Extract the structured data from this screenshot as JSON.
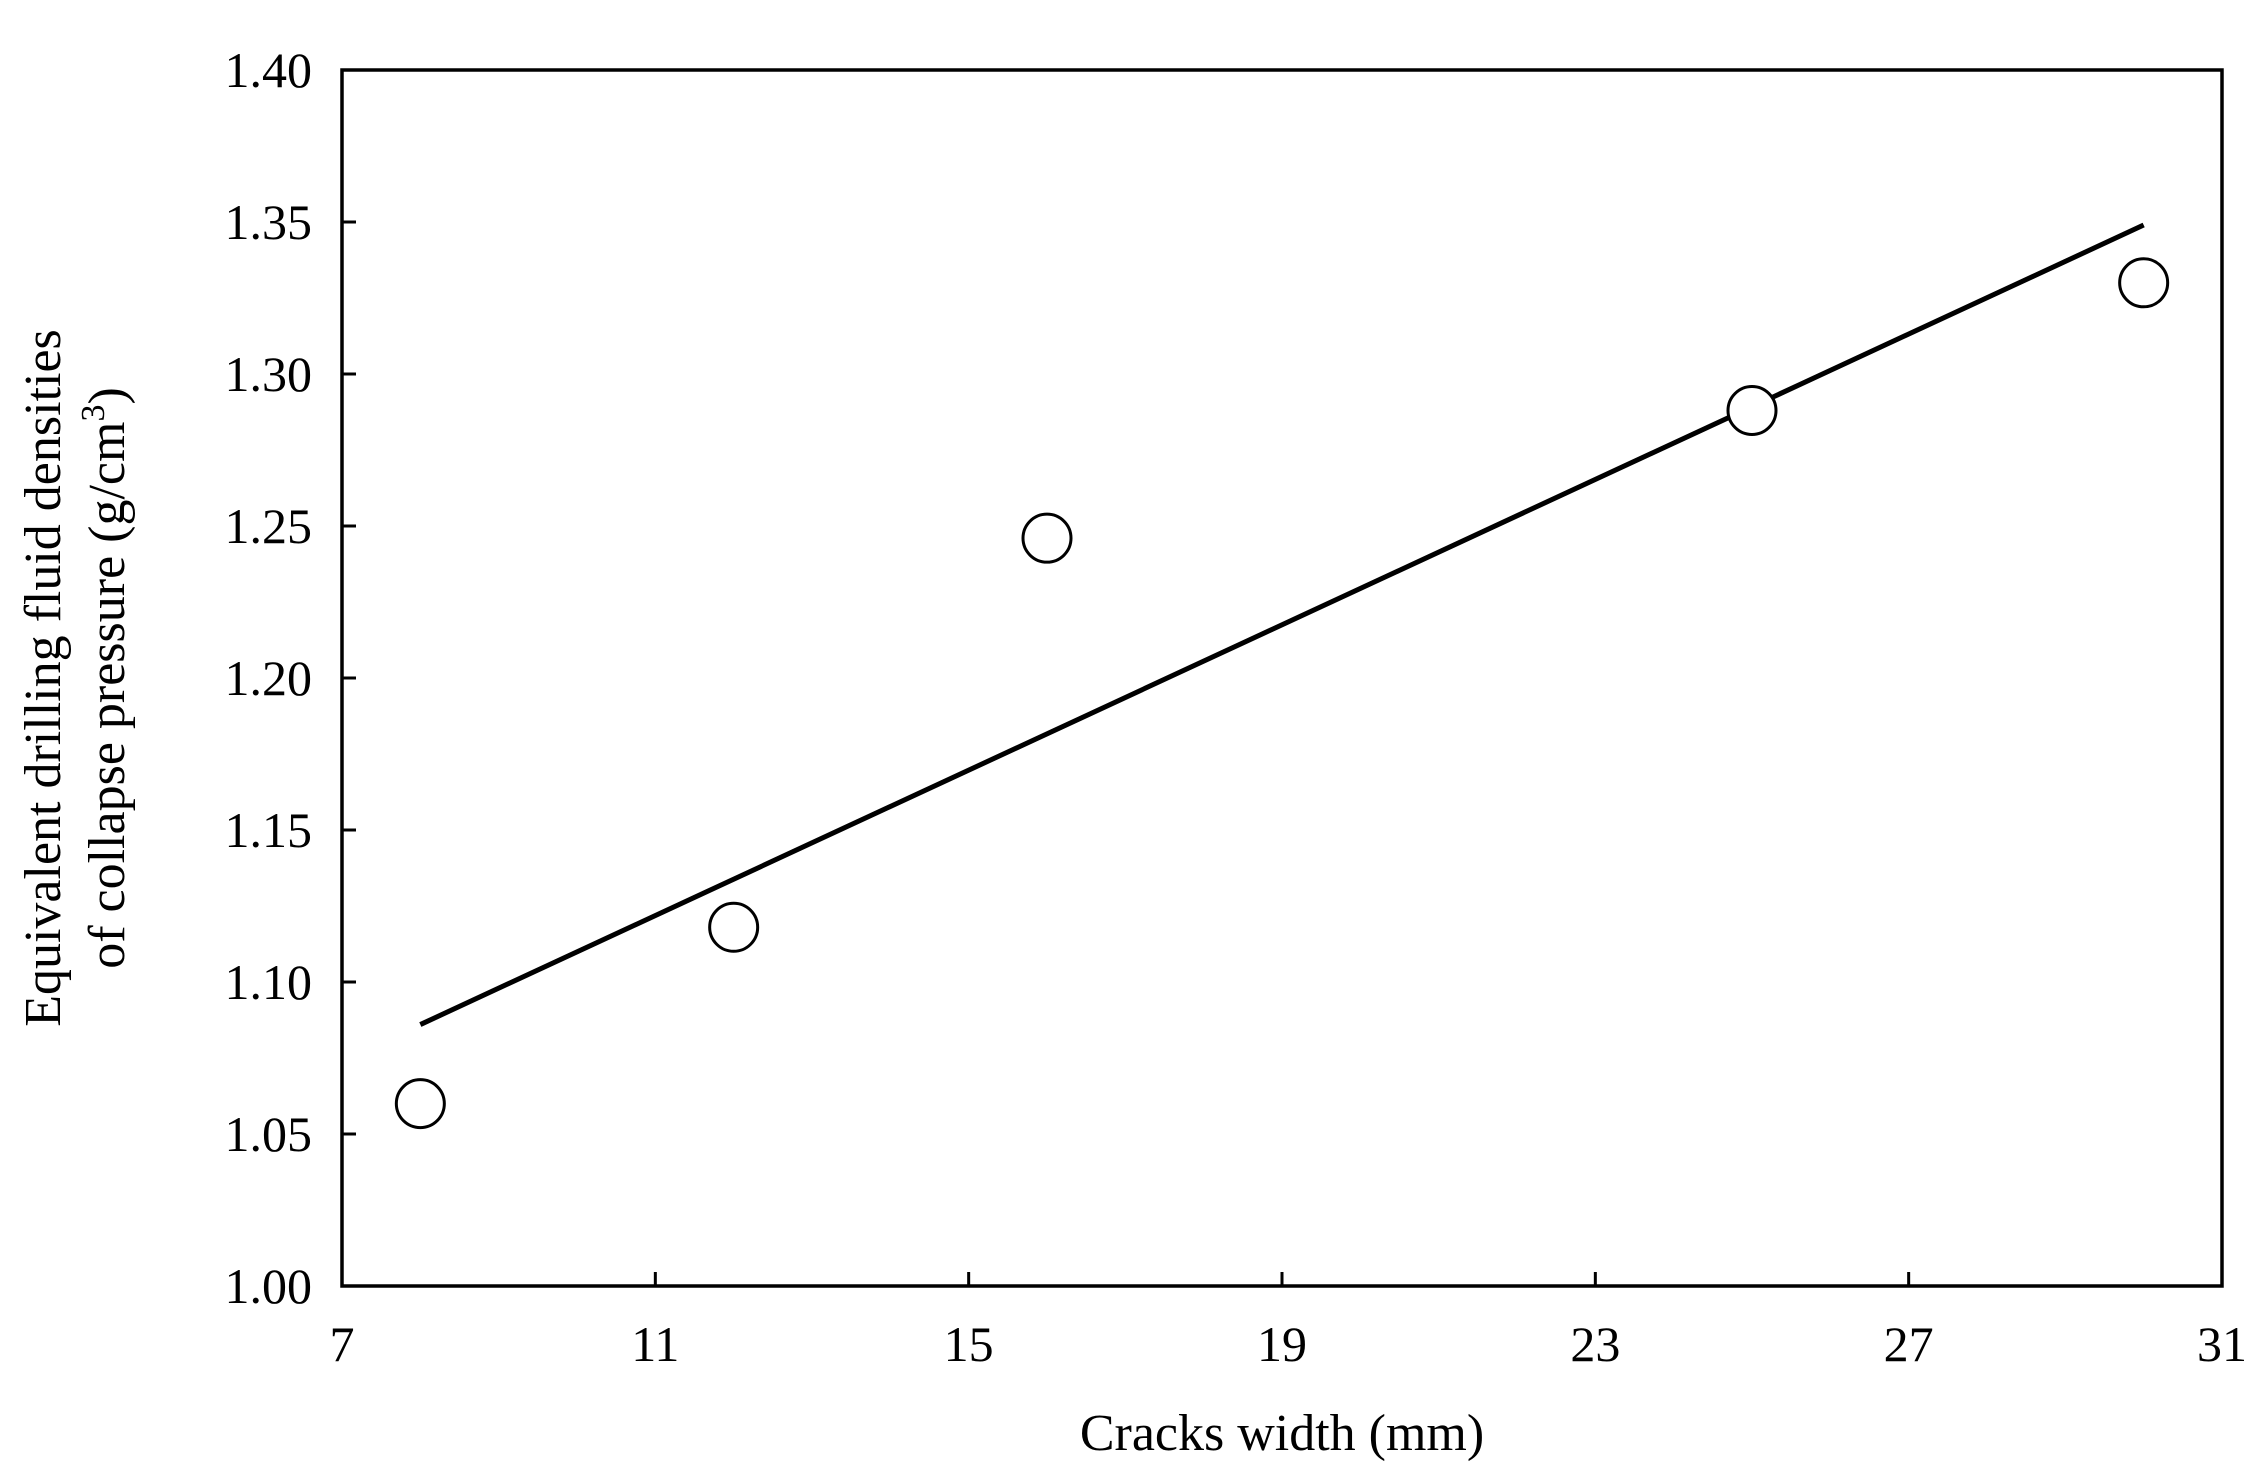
{
  "chart_data": {
    "type": "scatter",
    "xlabel": "Cracks width (mm)",
    "ylabel_line1": "Equivalent drilling fluid densities",
    "ylabel_line2_prefix": "of collapse pressure (g/cm",
    "ylabel_line2_sup": "3",
    "ylabel_line2_suffix": ")",
    "xlim": [
      7,
      31
    ],
    "ylim": [
      1.0,
      1.4
    ],
    "xticks": [
      "7",
      "11",
      "15",
      "19",
      "23",
      "27",
      "31"
    ],
    "yticks": [
      "1.00",
      "1.05",
      "1.10",
      "1.15",
      "1.20",
      "1.25",
      "1.30",
      "1.35",
      "1.40"
    ],
    "grid": false,
    "series": [
      {
        "marker": "open-circle",
        "x": [
          8,
          12,
          16,
          25,
          30
        ],
        "y": [
          1.06,
          1.118,
          1.246,
          1.288,
          1.33
        ]
      }
    ],
    "trendline": {
      "style": "solid",
      "x": [
        8,
        30
      ],
      "y": [
        1.086,
        1.349
      ]
    },
    "colors": {
      "axis": "#000000",
      "marker_stroke": "#000000",
      "marker_fill": "#ffffff",
      "line": "#000000"
    }
  }
}
